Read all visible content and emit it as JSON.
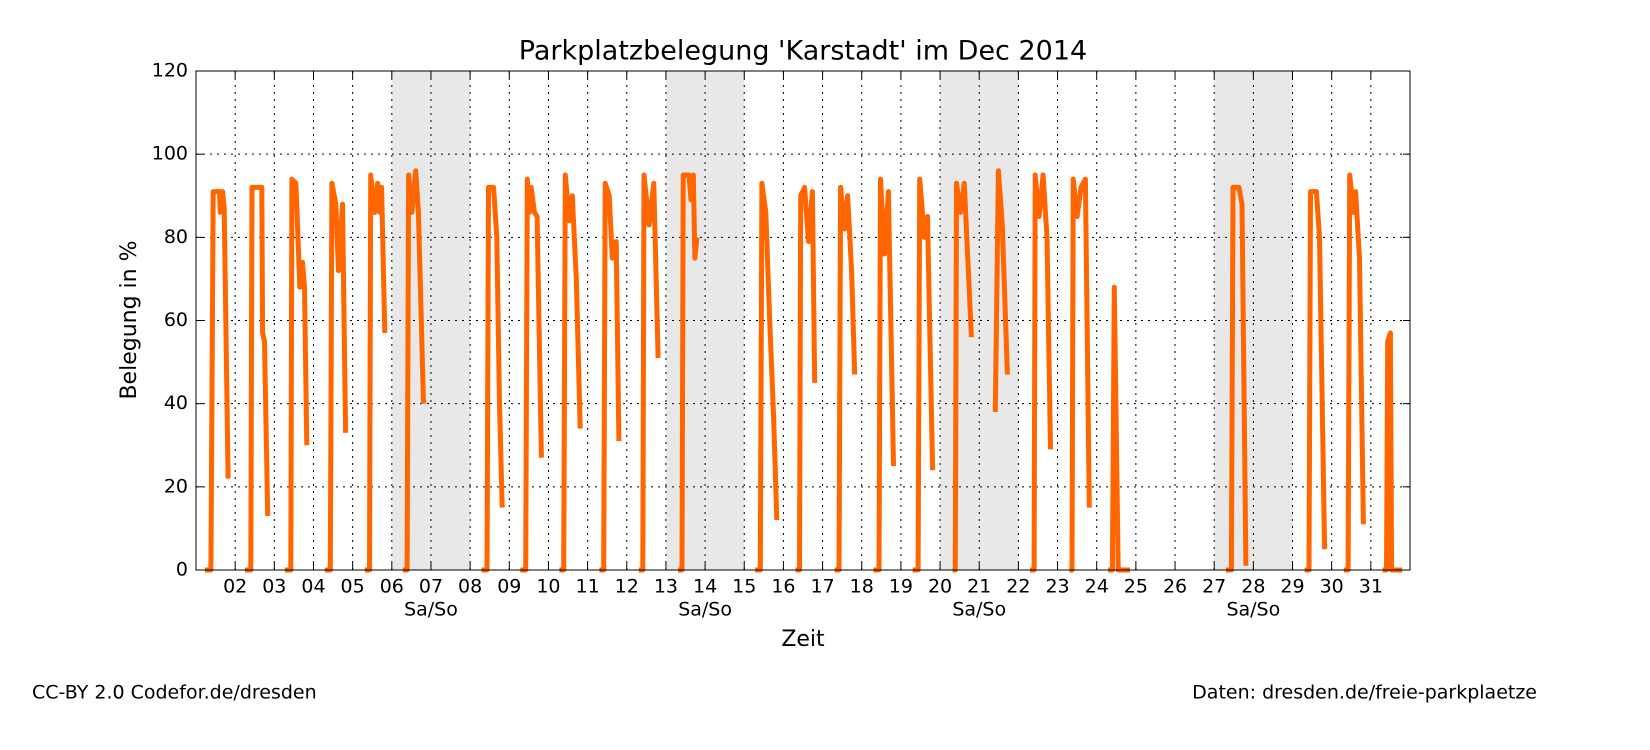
{
  "chart_data": {
    "type": "line",
    "title": "Parkplatzbelegung 'Karstadt' im Dec 2014",
    "xlabel": "Zeit",
    "ylabel": "Belegung in %",
    "footer_left": "CC-BY 2.0 Codefor.de/dresden",
    "footer_right": "Daten: dresden.de/freie-parkplaetze",
    "xlim": [
      1,
      32
    ],
    "ylim": [
      0,
      120
    ],
    "yticks": [
      0,
      20,
      40,
      60,
      80,
      100,
      120
    ],
    "xticks": [
      {
        "value": 2,
        "label": "02"
      },
      {
        "value": 3,
        "label": "03"
      },
      {
        "value": 4,
        "label": "04"
      },
      {
        "value": 5,
        "label": "05"
      },
      {
        "value": 6,
        "label": "06"
      },
      {
        "value": 7,
        "label": "07"
      },
      {
        "value": 8,
        "label": "08"
      },
      {
        "value": 9,
        "label": "09"
      },
      10,
      11,
      12,
      13,
      14,
      15,
      16,
      17,
      18,
      19,
      20,
      21,
      22,
      23,
      24,
      25,
      26,
      27,
      28,
      29,
      30,
      31
    ],
    "grid": true,
    "weekend_color": "#e8e8e8",
    "weekends": [
      {
        "start": 6,
        "end": 8,
        "label": "Sa/So"
      },
      {
        "start": 13,
        "end": 15,
        "label": "Sa/So"
      },
      {
        "start": 20,
        "end": 22,
        "label": "Sa/So"
      },
      {
        "start": 27,
        "end": 29,
        "label": "Sa/So"
      }
    ],
    "series": [
      {
        "color": "#ff6600",
        "x": [
          1.23,
          1.38,
          1.44,
          1.6,
          1.62,
          1.68,
          1.72,
          1.82,
          null,
          2.25,
          2.4,
          2.43,
          2.68,
          2.7,
          2.75,
          2.83,
          null,
          3.27,
          3.42,
          3.45,
          3.55,
          3.62,
          3.65,
          3.72,
          3.77,
          3.83,
          null,
          4.29,
          4.43,
          4.47,
          4.57,
          4.64,
          4.74,
          4.82,
          null,
          5.31,
          5.43,
          5.46,
          5.56,
          5.64,
          5.69,
          5.74,
          5.82,
          null,
          6.28,
          6.39,
          6.43,
          6.51,
          6.61,
          6.68,
          6.81,
          null,
          8.29,
          8.43,
          8.47,
          8.6,
          8.68,
          8.75,
          8.82,
          null,
          9.28,
          9.42,
          9.46,
          9.51,
          9.56,
          9.64,
          9.71,
          9.82,
          null,
          10.28,
          10.39,
          10.43,
          10.53,
          10.61,
          10.71,
          10.81,
          null,
          11.3,
          11.41,
          11.45,
          11.55,
          11.63,
          11.73,
          11.8,
          null,
          12.31,
          12.41,
          12.44,
          12.57,
          12.69,
          12.8,
          null,
          13.31,
          13.41,
          13.44,
          13.59,
          13.64,
          13.7,
          13.74,
          13.79,
          null,
          15.28,
          15.41,
          15.45,
          15.55,
          15.65,
          15.75,
          15.83,
          null,
          16.31,
          16.41,
          16.44,
          16.54,
          16.64,
          16.74,
          16.8,
          null,
          17.31,
          17.42,
          17.46,
          17.56,
          17.64,
          17.74,
          17.82,
          null,
          18.3,
          18.44,
          18.48,
          18.58,
          18.68,
          18.81,
          null,
          19.3,
          19.44,
          19.48,
          19.6,
          19.68,
          19.81,
          null,
          20.32,
          20.39,
          20.42,
          20.52,
          20.62,
          20.8,
          null,
          21.41,
          21.49,
          21.59,
          21.72,
          null,
          22.3,
          22.4,
          22.43,
          22.53,
          22.63,
          22.73,
          22.82,
          null,
          23.3,
          23.37,
          23.4,
          23.5,
          23.6,
          23.71,
          23.81,
          null,
          24.29,
          24.4,
          24.45,
          24.55,
          24.85,
          null,
          27.3,
          27.44,
          27.48,
          27.63,
          27.71,
          27.81,
          null,
          29.31,
          29.42,
          29.46,
          29.61,
          29.69,
          29.82,
          null,
          30.31,
          30.42,
          30.46,
          30.56,
          30.61,
          30.71,
          30.81,
          null,
          31.3,
          31.4,
          31.43,
          31.5,
          31.53,
          31.8
        ],
        "values": [
          0,
          0,
          91,
          91,
          86,
          91,
          87,
          22,
          null,
          0,
          0,
          92,
          92,
          57,
          55,
          13,
          null,
          0,
          0,
          94,
          93,
          76,
          68,
          74,
          68,
          30,
          null,
          0,
          0,
          93,
          88,
          72,
          88,
          33,
          null,
          0,
          0,
          95,
          86,
          93,
          86,
          92,
          57,
          null,
          0,
          0,
          95,
          86,
          96,
          86,
          40,
          null,
          0,
          0,
          92,
          92,
          80,
          40,
          15,
          null,
          0,
          0,
          94,
          86,
          92,
          86,
          85,
          27,
          null,
          0,
          0,
          95,
          84,
          90,
          70,
          34,
          null,
          0,
          0,
          93,
          90,
          75,
          79,
          31,
          null,
          0,
          0,
          95,
          83,
          93,
          51,
          null,
          0,
          0,
          95,
          95,
          89,
          95,
          75,
          80,
          null,
          0,
          0,
          93,
          86,
          60,
          37,
          12,
          null,
          0,
          0,
          90,
          92,
          79,
          91,
          45,
          null,
          0,
          0,
          92,
          82,
          90,
          72,
          47,
          null,
          0,
          0,
          94,
          76,
          91,
          25,
          null,
          0,
          0,
          94,
          80,
          85,
          24,
          null,
          0,
          0,
          93,
          86,
          93,
          56,
          null,
          38,
          96,
          83,
          47,
          null,
          0,
          0,
          95,
          85,
          95,
          80,
          29,
          null,
          0,
          0,
          94,
          85,
          92,
          94,
          15,
          null,
          0,
          0,
          68,
          0,
          0,
          null,
          0,
          0,
          92,
          92,
          88,
          1,
          null,
          0,
          0,
          91,
          91,
          80,
          5,
          null,
          0,
          0,
          95,
          86,
          91,
          75,
          11,
          null,
          0,
          0,
          55,
          57,
          0,
          0
        ]
      }
    ]
  }
}
